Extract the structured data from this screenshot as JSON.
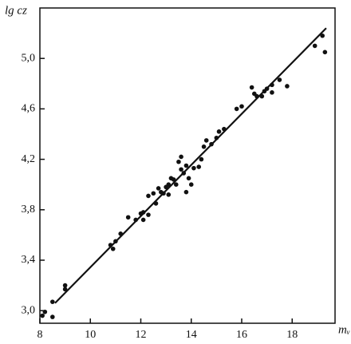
{
  "chart_data": {
    "type": "scatter",
    "x_label": "mᵥ",
    "y_label": "lg cz",
    "xlim": [
      8,
      19.7
    ],
    "ylim": [
      2.9,
      5.4
    ],
    "xticks": [
      8,
      10,
      12,
      14,
      16,
      18
    ],
    "yticks": [
      {
        "value": 3.0,
        "label": "3,0"
      },
      {
        "value": 3.4,
        "label": "3,4"
      },
      {
        "value": 3.8,
        "label": "3,8"
      },
      {
        "value": 4.2,
        "label": "4,2"
      },
      {
        "value": 4.6,
        "label": "4,6"
      },
      {
        "value": 5.0,
        "label": "5,0"
      }
    ],
    "color": "#111111",
    "x": [
      8.1,
      8.2,
      8.5,
      8.5,
      9.0,
      9.0,
      10.8,
      10.9,
      11.0,
      11.2,
      11.5,
      11.8,
      12.0,
      12.1,
      12.1,
      12.3,
      12.3,
      12.5,
      12.6,
      12.7,
      12.8,
      12.9,
      13.0,
      13.1,
      13.1,
      13.2,
      13.3,
      13.4,
      13.5,
      13.6,
      13.6,
      13.7,
      13.8,
      13.8,
      13.9,
      14.0,
      14.1,
      14.3,
      14.4,
      14.5,
      14.6,
      14.8,
      15.0,
      15.1,
      15.3,
      15.8,
      16.0,
      16.4,
      16.5,
      16.6,
      16.8,
      16.9,
      17.0,
      17.2,
      17.2,
      17.5,
      17.8,
      18.9,
      19.2,
      19.3
    ],
    "values": [
      2.96,
      2.99,
      2.95,
      3.07,
      3.2,
      3.17,
      3.52,
      3.49,
      3.55,
      3.61,
      3.74,
      3.72,
      3.77,
      3.78,
      3.72,
      3.76,
      3.91,
      3.93,
      3.85,
      3.97,
      3.94,
      3.93,
      3.98,
      4.0,
      3.92,
      4.05,
      4.04,
      4.0,
      4.18,
      4.12,
      4.22,
      4.09,
      4.15,
      3.94,
      4.05,
      4.0,
      4.13,
      4.14,
      4.2,
      4.3,
      4.35,
      4.32,
      4.37,
      4.42,
      4.44,
      4.6,
      4.62,
      4.77,
      4.72,
      4.7,
      4.7,
      4.74,
      4.76,
      4.79,
      4.73,
      4.83,
      4.78,
      5.1,
      5.18,
      5.05
    ],
    "fit_line": {
      "x": [
        8.6,
        19.35
      ],
      "values": [
        3.06,
        5.24
      ]
    }
  }
}
